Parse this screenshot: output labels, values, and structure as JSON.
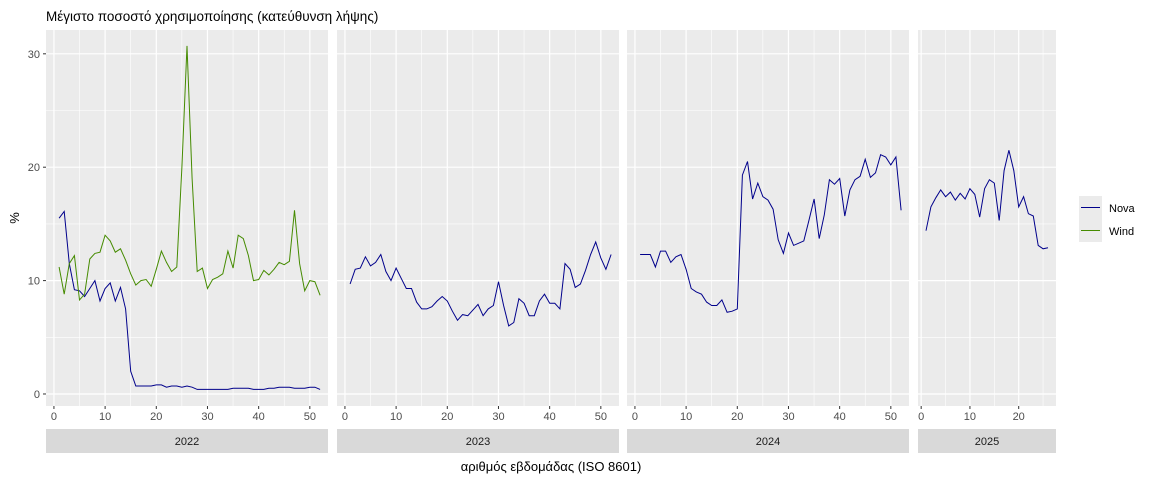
{
  "chart_data": {
    "type": "line",
    "title": "Μέγιστο ποσοστό χρησιμοποίησης (κατεύθυνση λήψης)",
    "xlabel": "αριθμός εβδομάδας (ISO 8601)",
    "ylabel": "%",
    "ylim": [
      -1.06,
      32.1
    ],
    "yticks": [
      0,
      10,
      20,
      30
    ],
    "grid": true,
    "legend_position": "right",
    "colors": {
      "Nova": "#00008B",
      "Wind": "#458B00"
    },
    "facets": [
      {
        "label": "2022",
        "xlim": [
          -1.55,
          53.55
        ],
        "xticks": [
          0,
          10,
          20,
          30,
          40,
          50
        ],
        "series": [
          {
            "name": "Nova",
            "values": [
              15.5,
              16.1,
              11.5,
              9.2,
              9.1,
              8.6,
              9.3,
              10.0,
              8.2,
              9.3,
              9.8,
              8.2,
              9.4,
              7.5,
              2.0,
              0.7,
              0.7,
              0.7,
              0.7,
              0.8,
              0.8,
              0.6,
              0.7,
              0.7,
              0.6,
              0.7,
              0.6,
              0.4,
              0.4,
              0.4,
              0.4,
              0.4,
              0.4,
              0.4,
              0.5,
              0.5,
              0.5,
              0.5,
              0.4,
              0.4,
              0.4,
              0.5,
              0.5,
              0.6,
              0.6,
              0.6,
              0.5,
              0.5,
              0.5,
              0.6,
              0.6,
              0.4
            ]
          },
          {
            "name": "Wind",
            "values": [
              11.2,
              8.8,
              11.5,
              12.2,
              8.3,
              8.8,
              11.9,
              12.4,
              12.5,
              14.0,
              13.5,
              12.5,
              12.8,
              11.8,
              10.6,
              9.6,
              10.0,
              10.1,
              9.5,
              11.0,
              12.6,
              11.6,
              10.8,
              11.2,
              20.0,
              30.7,
              19.0,
              10.8,
              11.1,
              9.3,
              10.1,
              10.3,
              10.6,
              12.6,
              11.1,
              14.0,
              13.7,
              12.2,
              10.0,
              10.1,
              10.9,
              10.5,
              11.0,
              11.6,
              11.4,
              11.7,
              16.2,
              11.5,
              9.1,
              10.0,
              9.9,
              8.7
            ]
          }
        ]
      },
      {
        "label": "2023",
        "xlim": [
          -1.55,
          53.55
        ],
        "xticks": [
          0,
          10,
          20,
          30,
          40,
          50
        ],
        "series": [
          {
            "name": "Nova",
            "values": [
              9.7,
              11.0,
              11.1,
              12.1,
              11.3,
              11.6,
              12.3,
              10.8,
              10.0,
              11.1,
              10.2,
              9.3,
              9.3,
              8.1,
              7.5,
              7.5,
              7.7,
              8.2,
              8.6,
              8.2,
              7.3,
              6.5,
              7.0,
              6.9,
              7.4,
              7.9,
              6.9,
              7.5,
              7.8,
              9.9,
              7.8,
              6.0,
              6.3,
              8.4,
              8.0,
              6.9,
              6.9,
              8.2,
              8.8,
              8.0,
              8.0,
              7.5,
              11.5,
              11.0,
              9.4,
              9.7,
              10.9,
              12.3,
              13.4,
              12.0,
              11.0,
              12.3
            ]
          }
        ]
      },
      {
        "label": "2024",
        "xlim": [
          -1.55,
          53.55
        ],
        "xticks": [
          0,
          10,
          20,
          30,
          40,
          50
        ],
        "series": [
          {
            "name": "Nova",
            "values": [
              12.3,
              12.3,
              12.3,
              11.2,
              12.6,
              12.6,
              11.6,
              12.1,
              12.3,
              11.0,
              9.3,
              9.0,
              8.8,
              8.1,
              7.8,
              7.8,
              8.3,
              7.2,
              7.3,
              7.5,
              19.3,
              20.5,
              17.2,
              18.6,
              17.4,
              17.1,
              16.3,
              13.6,
              12.4,
              14.2,
              13.1,
              13.3,
              13.5,
              15.3,
              17.2,
              13.7,
              15.8,
              18.9,
              18.5,
              19.0,
              15.7,
              18.0,
              18.9,
              19.2,
              20.7,
              19.1,
              19.5,
              21.1,
              20.9,
              20.2,
              20.9,
              16.2
            ]
          }
        ]
      },
      {
        "label": "2025",
        "xlim": [
          -0.65,
          27.65
        ],
        "xticks": [
          0,
          10,
          20
        ],
        "series": [
          {
            "name": "Nova",
            "values": [
              14.4,
              16.5,
              17.3,
              18.0,
              17.4,
              17.8,
              17.1,
              17.7,
              17.2,
              18.1,
              17.6,
              15.6,
              18.1,
              18.9,
              18.6,
              15.3,
              19.7,
              21.5,
              19.7,
              16.5,
              17.4,
              15.9,
              15.7,
              13.1,
              12.8,
              12.9
            ]
          }
        ]
      }
    ],
    "legend": [
      "Nova",
      "Wind"
    ]
  }
}
